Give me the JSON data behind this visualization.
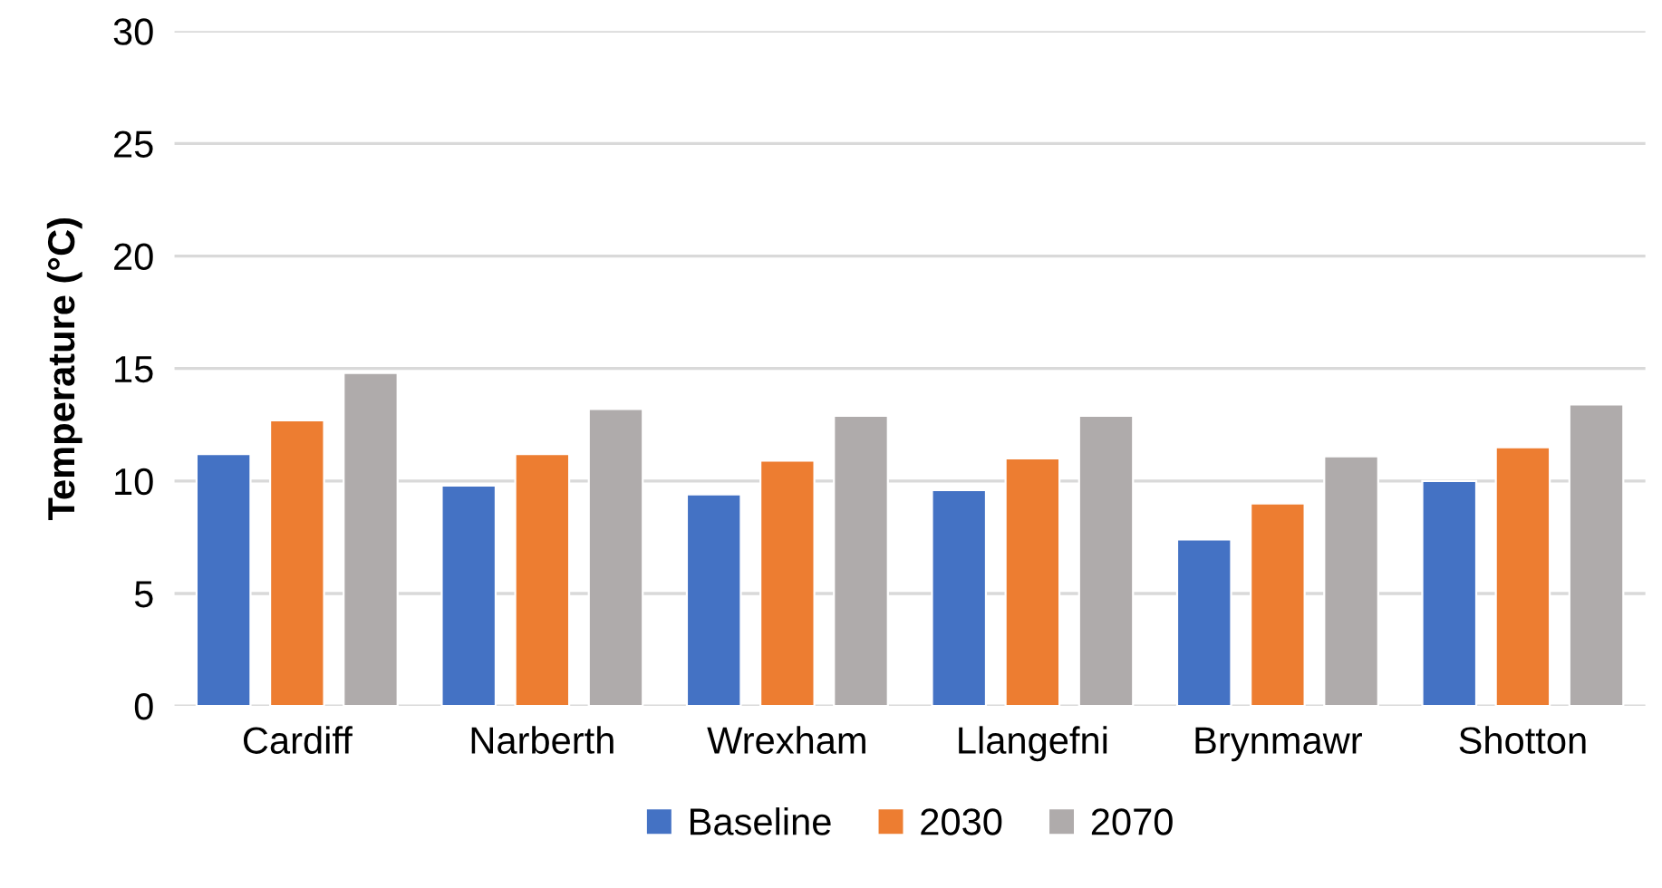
{
  "chart_data": {
    "type": "bar",
    "ylabel": "Temperature (°C)",
    "categories": [
      "Cardiff",
      "Narberth",
      "Wrexham",
      "Llangefni",
      "Brynmawr",
      "Shotton"
    ],
    "series": [
      {
        "name": "Baseline",
        "color": "#4472c4",
        "values": [
          11.2,
          9.8,
          9.4,
          9.6,
          7.4,
          10.0
        ]
      },
      {
        "name": "2030",
        "color": "#ed7d31",
        "values": [
          12.7,
          11.2,
          10.9,
          11.0,
          9.0,
          11.5
        ]
      },
      {
        "name": "2070",
        "color": "#afabab",
        "values": [
          14.8,
          13.2,
          12.9,
          12.9,
          11.1,
          13.4
        ]
      }
    ],
    "ylim": [
      0,
      30
    ],
    "yticks": [
      0,
      5,
      10,
      15,
      20,
      25,
      30
    ],
    "grid": "y",
    "legend": "bottom"
  }
}
